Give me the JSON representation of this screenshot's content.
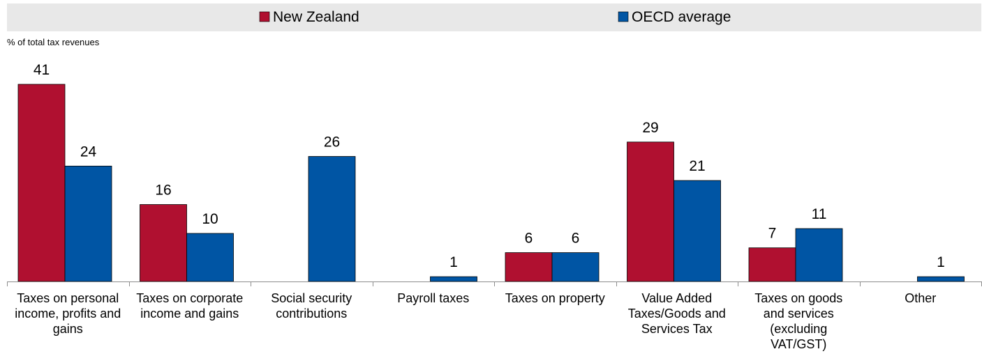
{
  "chart_data": {
    "type": "bar",
    "title": "",
    "ylabel": "% of total tax revenues",
    "xlabel": "",
    "ylim": [
      0,
      41
    ],
    "legend_position": "top",
    "grid": false,
    "categories": [
      "Taxes on personal income, profits and gains",
      "Taxes on corporate income and gains",
      "Social security contributions",
      "Payroll taxes",
      "Taxes on property",
      "Value Added Taxes/Goods and Services Tax",
      "Taxes on goods and services (excluding VAT/GST)",
      "Other"
    ],
    "category_lines": [
      [
        "Taxes on personal",
        "income, profits and",
        "gains"
      ],
      [
        "Taxes on corporate",
        "income and gains"
      ],
      [
        "Social security",
        "contributions"
      ],
      [
        "Payroll taxes"
      ],
      [
        "Taxes on property"
      ],
      [
        "Value Added",
        "Taxes/Goods and",
        "Services Tax"
      ],
      [
        "Taxes on goods",
        "and services",
        "(excluding",
        "VAT/GST)"
      ],
      [
        "Other"
      ]
    ],
    "series": [
      {
        "name": "New Zealand",
        "color": "#B01030",
        "values": [
          41,
          16,
          0,
          0,
          6,
          29,
          7,
          0
        ],
        "labels": [
          "41",
          "16",
          "",
          "",
          "6",
          "29",
          "7",
          ""
        ]
      },
      {
        "name": "OECD average",
        "color": "#0055A4",
        "values": [
          24,
          10,
          26,
          1,
          6,
          21,
          11,
          1
        ],
        "labels": [
          "24",
          "10",
          "26",
          "1",
          "6",
          "21",
          "11",
          "1"
        ]
      }
    ]
  }
}
